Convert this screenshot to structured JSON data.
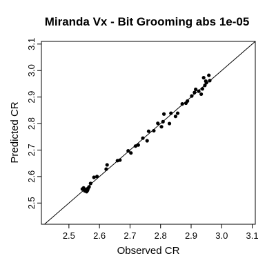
{
  "chart_data": {
    "type": "scatter",
    "title": "Miranda Vx  -  Bit Grooming abs 1e-05",
    "xlabel": "Observed CR",
    "ylabel": "Predicted CR",
    "xlim": [
      2.41,
      3.11
    ],
    "ylim": [
      2.42,
      3.11
    ],
    "xticks": [
      "2.5",
      "2.6",
      "2.7",
      "2.8",
      "2.9",
      "3.0",
      "3.1"
    ],
    "yticks": [
      "2.5",
      "2.6",
      "2.7",
      "2.8",
      "2.9",
      "3.0",
      "3.1"
    ],
    "reference_line": "y = x",
    "grid": false,
    "legend": "none",
    "point_color": "#000000",
    "points": [
      [
        2.544,
        2.553
      ],
      [
        2.548,
        2.557
      ],
      [
        2.552,
        2.546
      ],
      [
        2.555,
        2.551
      ],
      [
        2.558,
        2.543
      ],
      [
        2.561,
        2.548
      ],
      [
        2.563,
        2.555
      ],
      [
        2.566,
        2.561
      ],
      [
        2.571,
        2.574
      ],
      [
        2.582,
        2.597
      ],
      [
        2.592,
        2.6
      ],
      [
        2.622,
        2.628
      ],
      [
        2.625,
        2.644
      ],
      [
        2.659,
        2.66
      ],
      [
        2.667,
        2.662
      ],
      [
        2.694,
        2.697
      ],
      [
        2.703,
        2.689
      ],
      [
        2.718,
        2.715
      ],
      [
        2.727,
        2.719
      ],
      [
        2.742,
        2.745
      ],
      [
        2.756,
        2.735
      ],
      [
        2.761,
        2.771
      ],
      [
        2.778,
        2.773
      ],
      [
        2.791,
        2.801
      ],
      [
        2.803,
        2.788
      ],
      [
        2.808,
        2.807
      ],
      [
        2.811,
        2.836
      ],
      [
        2.829,
        2.8
      ],
      [
        2.834,
        2.839
      ],
      [
        2.849,
        2.827
      ],
      [
        2.856,
        2.839
      ],
      [
        2.871,
        2.874
      ],
      [
        2.883,
        2.877
      ],
      [
        2.888,
        2.885
      ],
      [
        2.902,
        2.904
      ],
      [
        2.911,
        2.917
      ],
      [
        2.915,
        2.929
      ],
      [
        2.925,
        2.922
      ],
      [
        2.933,
        2.911
      ],
      [
        2.937,
        2.931
      ],
      [
        2.941,
        2.973
      ],
      [
        2.945,
        2.944
      ],
      [
        2.948,
        2.96
      ],
      [
        2.95,
        2.954
      ],
      [
        2.958,
        2.982
      ],
      [
        2.961,
        2.962
      ]
    ]
  }
}
